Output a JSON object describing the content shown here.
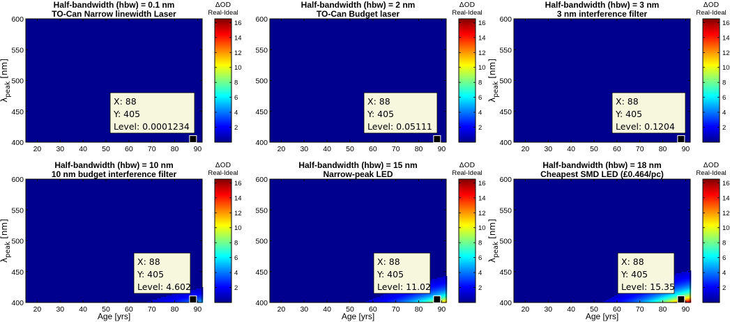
{
  "colormap": [
    "#00008f",
    "#0000ff",
    "#0080ff",
    "#00ffff",
    "#80ff80",
    "#ffff00",
    "#ff8000",
    "#ff0000",
    "#800000"
  ],
  "chart_data": [
    {
      "type": "heatmap",
      "title": "Half-bandwidth (hbw) = 0.1 nm",
      "subtitle": "TO-Can Narrow linewidth Laser",
      "xlabel": "",
      "ylabel_main": "λ",
      "ylabel_sub": "peak",
      "ylabel_unit": " [nm]",
      "xlim": [
        15,
        92
      ],
      "ylim": [
        400,
        600
      ],
      "xticks": [
        "20",
        "30",
        "40",
        "50",
        "60",
        "70",
        "80",
        "90"
      ],
      "yticks": [
        "400",
        "450",
        "500",
        "550",
        "600"
      ],
      "colorbar": {
        "title": "ΔOD",
        "subtitle": "Real-Ideal",
        "ticks": [
          "2",
          "4",
          "6",
          "8",
          "10",
          "12",
          "14",
          "16"
        ],
        "range": [
          0,
          16.5
        ]
      },
      "datatip": {
        "x_label": "X: 88",
        "y_label": "Y: 405",
        "level_label": "Level: 0.0001234",
        "x": 88,
        "y": 405,
        "level": 0.0001234
      },
      "max_level": 0.00013
    },
    {
      "type": "heatmap",
      "title": "Half-bandwidth (hbw) = 2 nm",
      "subtitle": "TO-Can Budget laser",
      "xlabel": "",
      "ylabel_main": "",
      "ylabel_sub": "",
      "ylabel_unit": "",
      "xlim": [
        15,
        92
      ],
      "ylim": [
        400,
        600
      ],
      "xticks": [
        "20",
        "30",
        "40",
        "50",
        "60",
        "70",
        "80",
        "90"
      ],
      "yticks": [
        "400",
        "450",
        "500",
        "550",
        "600"
      ],
      "colorbar": {
        "title": "ΔOD",
        "subtitle": "Real-Ideal",
        "ticks": [
          "2",
          "4",
          "6",
          "8",
          "10",
          "12",
          "14",
          "16"
        ],
        "range": [
          0,
          16.5
        ]
      },
      "datatip": {
        "x_label": "X: 88",
        "y_label": "Y: 405",
        "level_label": "Level: 0.05111",
        "x": 88,
        "y": 405,
        "level": 0.05111
      },
      "max_level": 0.055
    },
    {
      "type": "heatmap",
      "title": "Half-bandwidth (hbw) = 3 nm",
      "subtitle": "3 nm interference filter",
      "xlabel": "",
      "ylabel_main": "λ",
      "ylabel_sub": "peak",
      "ylabel_unit": " [nm]",
      "xlim": [
        15,
        92
      ],
      "ylim": [
        400,
        600
      ],
      "xticks": [
        "20",
        "30",
        "40",
        "50",
        "60",
        "70",
        "80",
        "90"
      ],
      "yticks": [
        "400",
        "450",
        "500",
        "550",
        "600"
      ],
      "colorbar": {
        "title": "ΔOD",
        "subtitle": "Real-Ideal",
        "ticks": [
          "2",
          "4",
          "6",
          "8",
          "10",
          "12",
          "14",
          "16"
        ],
        "range": [
          0,
          16.5
        ]
      },
      "datatip": {
        "x_label": "X: 88",
        "y_label": "Y: 405",
        "level_label": "Level: 0.1204",
        "x": 88,
        "y": 405,
        "level": 0.1204
      },
      "max_level": 0.13
    },
    {
      "type": "heatmap",
      "title": "Half-bandwidth (hbw) = 10 nm",
      "subtitle": "10 nm budget interference filter",
      "xlabel": "Age [yrs]",
      "ylabel_main": "λ",
      "ylabel_sub": "peak",
      "ylabel_unit": " [nm]",
      "xlim": [
        15,
        92
      ],
      "ylim": [
        400,
        600
      ],
      "xticks": [
        "20",
        "30",
        "40",
        "50",
        "60",
        "70",
        "80",
        "90"
      ],
      "yticks": [
        "400",
        "450",
        "500",
        "550",
        "600"
      ],
      "colorbar": {
        "title": "ΔOD",
        "subtitle": "Real-Ideal",
        "ticks": [
          "2",
          "4",
          "6",
          "8",
          "10",
          "12",
          "14",
          "16"
        ],
        "range": [
          0,
          16.5
        ]
      },
      "datatip": {
        "x_label": "X: 88",
        "y_label": "Y: 405",
        "level_label": "Level: 4.602",
        "x": 88,
        "y": 405,
        "level": 4.602
      },
      "max_level": 5.2
    },
    {
      "type": "heatmap",
      "title": "Half-bandwidth (hbw) = 15 nm",
      "subtitle": "Narrow-peak LED",
      "xlabel": "Age [yrs]",
      "ylabel_main": "",
      "ylabel_sub": "",
      "ylabel_unit": "",
      "xlim": [
        15,
        92
      ],
      "ylim": [
        400,
        600
      ],
      "xticks": [
        "20",
        "30",
        "40",
        "50",
        "60",
        "70",
        "80",
        "90"
      ],
      "yticks": [
        "400",
        "450",
        "500",
        "550",
        "600"
      ],
      "colorbar": {
        "title": "ΔOD",
        "subtitle": "Real-Ideal",
        "ticks": [
          "2",
          "4",
          "6",
          "8",
          "10",
          "12",
          "14",
          "16"
        ],
        "range": [
          0,
          16.5
        ]
      },
      "datatip": {
        "x_label": "X: 88",
        "y_label": "Y: 405",
        "level_label": "Level: 11.02",
        "x": 88,
        "y": 405,
        "level": 11.02
      },
      "max_level": 12.2
    },
    {
      "type": "heatmap",
      "title": "Half-bandwidth (hbw) = 18 nm",
      "subtitle": "Cheapest SMD LED (£0.464/pc)",
      "xlabel": "Age [yrs]",
      "ylabel_main": "λ",
      "ylabel_sub": "peak",
      "ylabel_unit": " [nm]",
      "xlim": [
        15,
        92
      ],
      "ylim": [
        400,
        600
      ],
      "xticks": [
        "20",
        "30",
        "40",
        "50",
        "60",
        "70",
        "80",
        "90"
      ],
      "yticks": [
        "400",
        "450",
        "500",
        "550",
        "600"
      ],
      "colorbar": {
        "title": "ΔOD",
        "subtitle": "Real-Ideal",
        "ticks": [
          "2",
          "4",
          "6",
          "8",
          "10",
          "12",
          "14",
          "16"
        ],
        "range": [
          0,
          16.5
        ]
      },
      "datatip": {
        "x_label": "X: 88",
        "y_label": "Y: 405",
        "level_label": "Level: 15.35",
        "x": 88,
        "y": 405,
        "level": 15.35
      },
      "max_level": 16.5
    }
  ]
}
